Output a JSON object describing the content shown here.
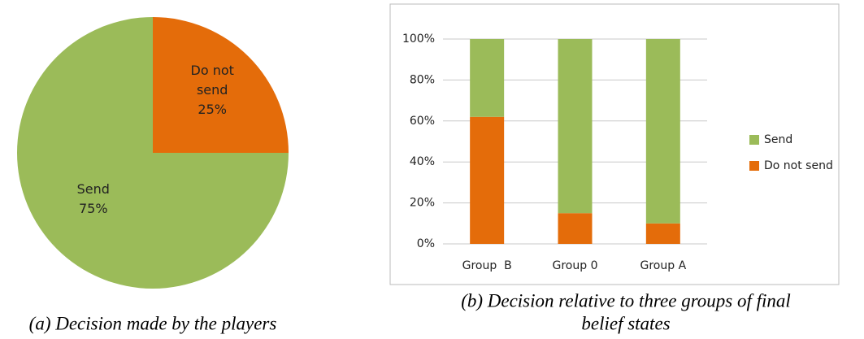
{
  "chart_data": [
    {
      "type": "pie",
      "caption": "(a) Decision made by the players",
      "categories": [
        "Do not send",
        "Send"
      ],
      "values": [
        25,
        75
      ],
      "value_labels": [
        "25%",
        "75%"
      ],
      "colors": [
        "#e46c0a",
        "#9bbb59"
      ]
    },
    {
      "type": "stacked_bar",
      "caption": [
        "(b) Decision relative to three groups of final",
        "belief states"
      ],
      "categories": [
        "Group  B",
        "Group 0",
        "Group A"
      ],
      "series": [
        {
          "name": "Do not send",
          "color": "#e46c0a",
          "values": [
            62,
            15,
            10
          ]
        },
        {
          "name": "Send",
          "color": "#9bbb59",
          "values": [
            38,
            85,
            90
          ]
        }
      ],
      "ylim": [
        0,
        100
      ],
      "yticks": [
        {
          "value": 0,
          "label": "0%"
        },
        {
          "value": 20,
          "label": "20%"
        },
        {
          "value": 40,
          "label": "40%"
        },
        {
          "value": 60,
          "label": "60%"
        },
        {
          "value": 80,
          "label": "80%"
        },
        {
          "value": 100,
          "label": "100%"
        }
      ],
      "grid": true,
      "legend": "right"
    }
  ]
}
